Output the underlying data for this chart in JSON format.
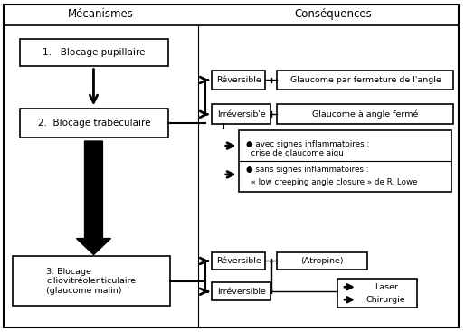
{
  "bg_color": "#ffffff",
  "header_mecanismes": "Mécanismes",
  "header_consequences": "Conséquences",
  "box1_text": "1.   Blocage pupillaire",
  "box2_text": "2.  Blocage trabéculaire",
  "box3_text": "3. Blocage\nciliovitréolenticulaire\n(glaucome malin)",
  "box_reversible1": "Réversible",
  "box_irreversible1": "Irréversib'e",
  "box_reversible2": "Réversible",
  "box_irreversible2": "Irréversible",
  "consequence1": "Glaucome par fermeture de l'angle",
  "consequence2": "Glaucome à angle fermé",
  "consequence3_line1": "● avec signes inflammatoires :",
  "consequence3_line2": "  crise de glaucome aigu",
  "consequence4_line1": "● sans signes inflammatoires :",
  "consequence4_line2": "  « low creeping angle closure » de R. Lowe",
  "consequence5": "(Atropine)",
  "consequence6a": "Laser",
  "consequence6b": "Chirurgie"
}
